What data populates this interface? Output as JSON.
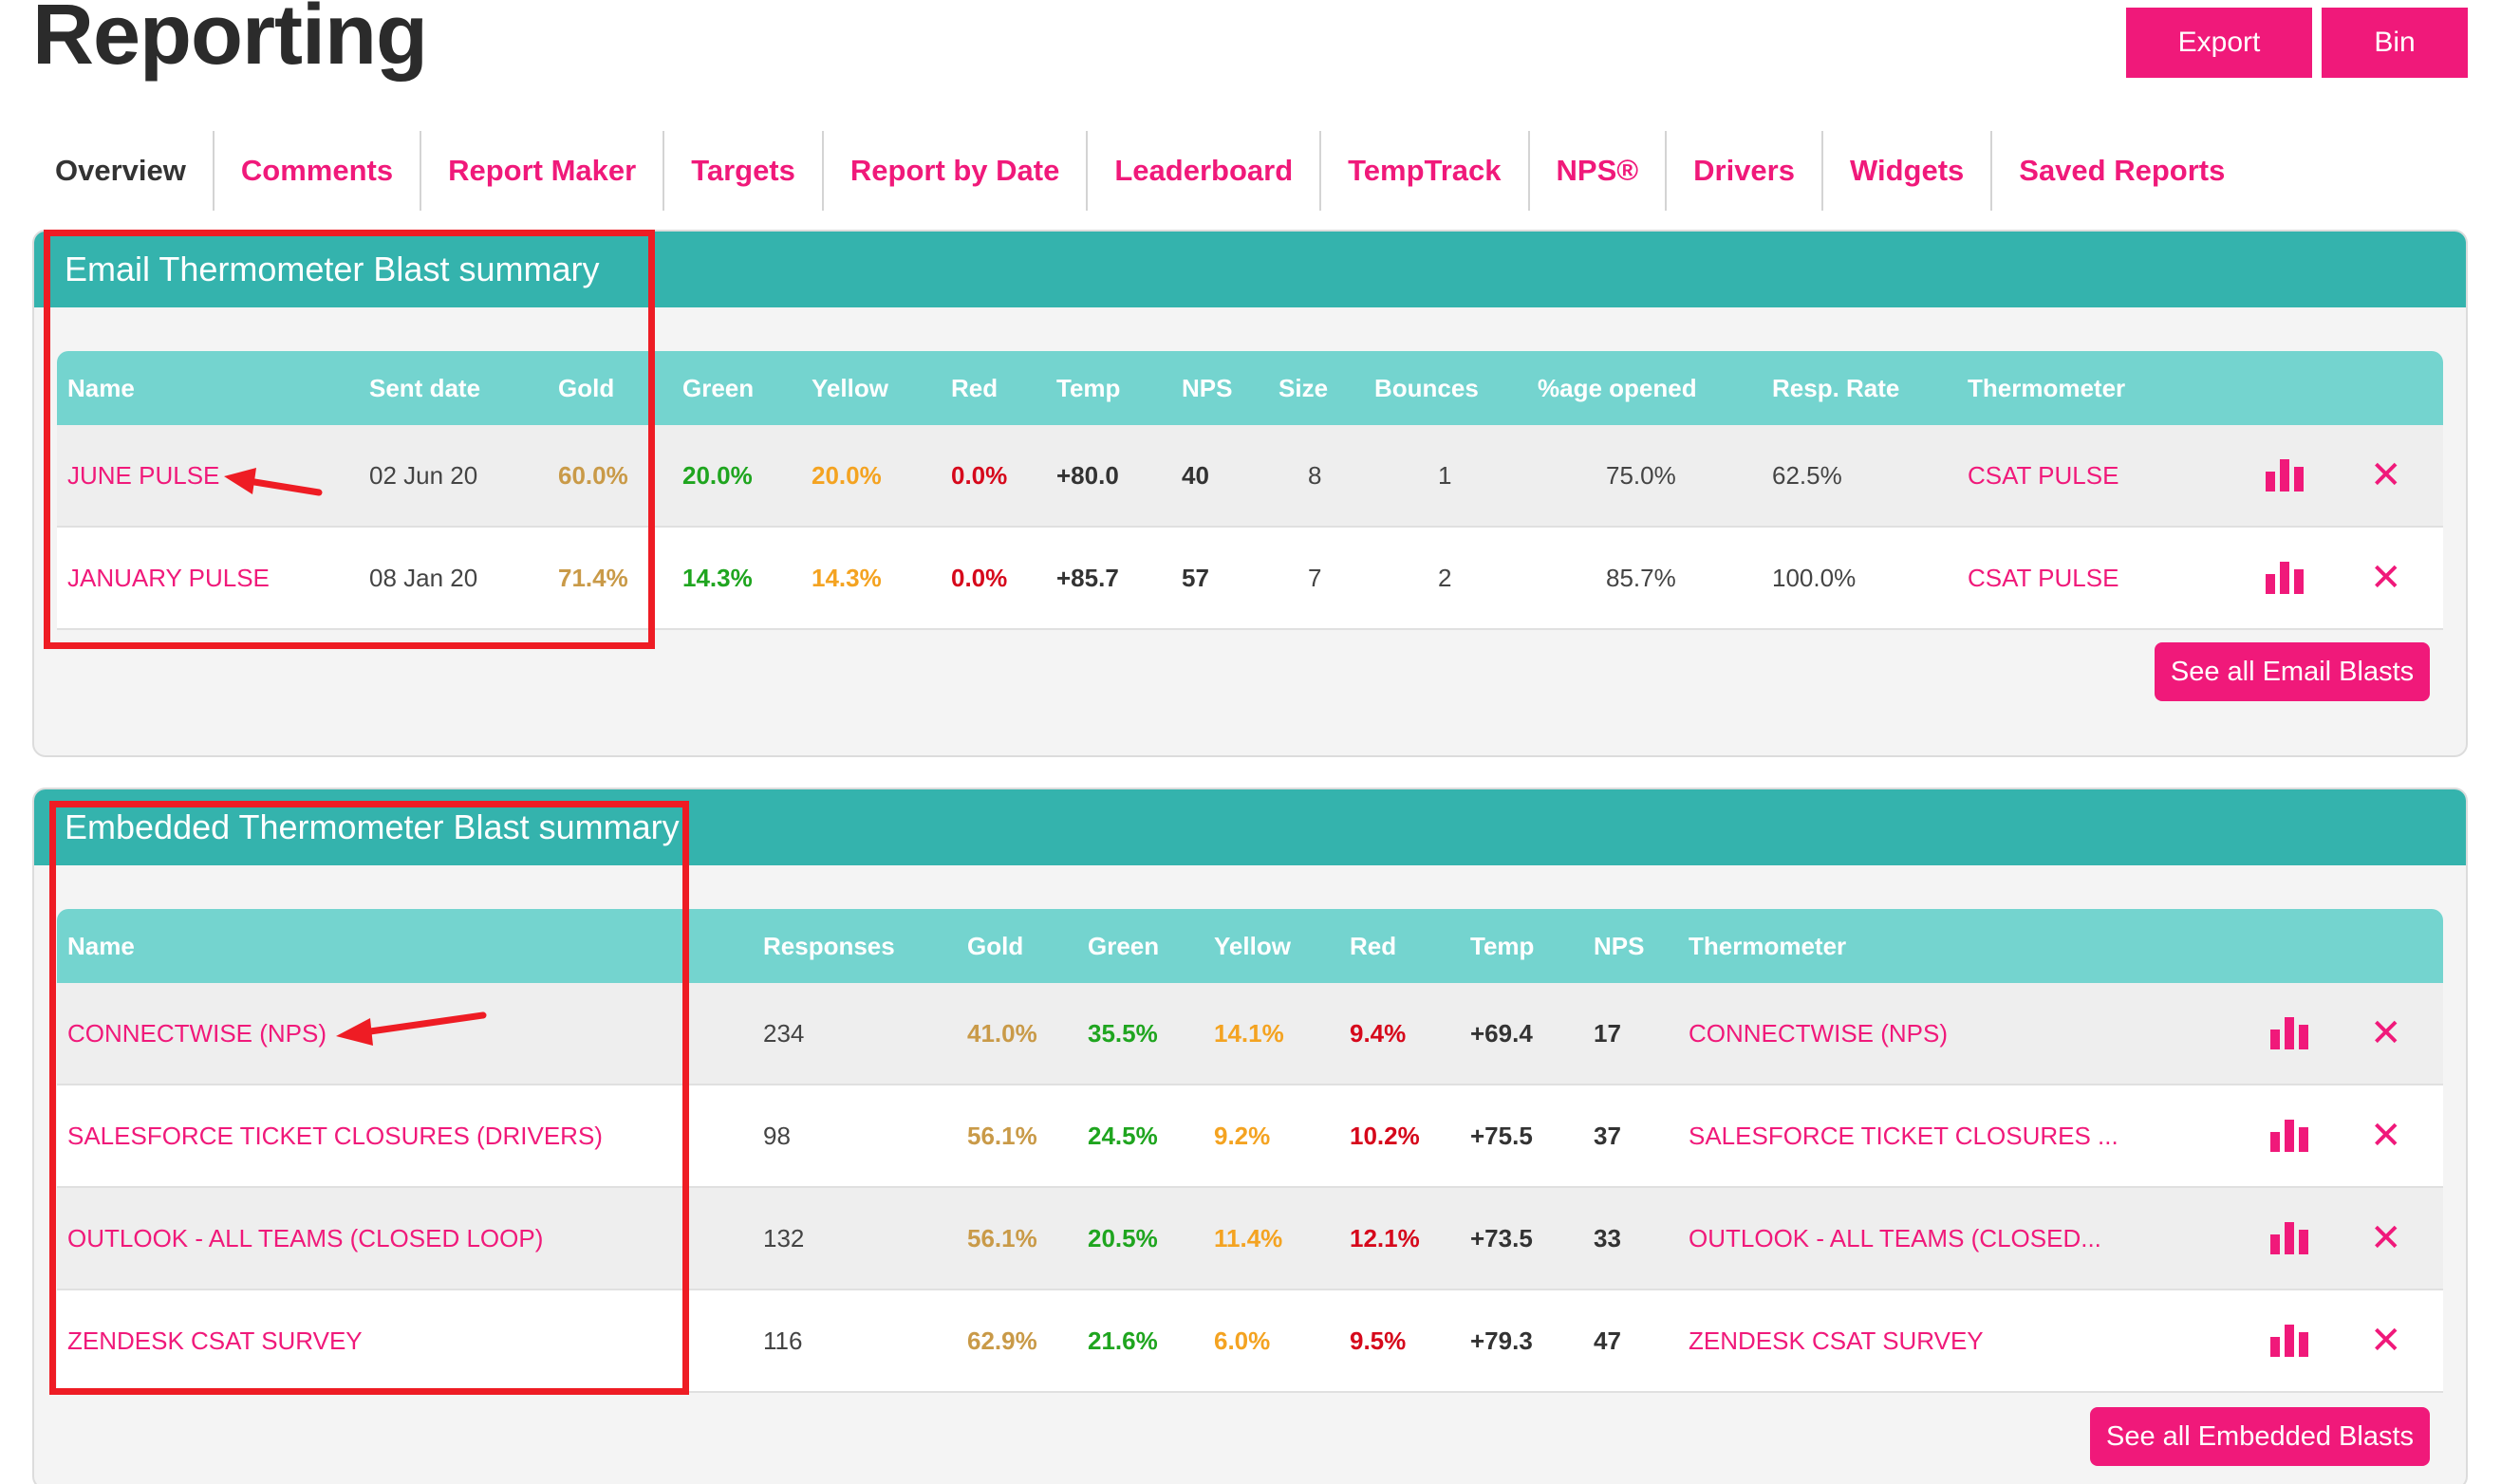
{
  "page": {
    "title": "Reporting",
    "export_label": "Export",
    "bin_label": "Bin"
  },
  "tabs": [
    "Overview",
    "Comments",
    "Report Maker",
    "Targets",
    "Report by Date",
    "Leaderboard",
    "TempTrack",
    "NPS®",
    "Drivers",
    "Widgets",
    "Saved Reports"
  ],
  "active_tab": "Overview",
  "colors": {
    "accent": "#f0197a",
    "header_teal": "#34b3ad",
    "table_head": "#74d4cf",
    "gold": "#c99a48",
    "green": "#1fa51f",
    "yellow": "#f4a321",
    "red": "#d6081b",
    "annotation": "#ee1c24"
  },
  "icons": {
    "chart": "bar-chart-icon",
    "delete": "close-icon"
  },
  "email_panel": {
    "title": "Email Thermometer Blast summary",
    "columns": [
      "Name",
      "Sent date",
      "Gold",
      "Green",
      "Yellow",
      "Red",
      "Temp",
      "NPS",
      "Size",
      "Bounces",
      "%age opened",
      "Resp. Rate",
      "Thermometer"
    ],
    "rows": [
      {
        "name": "JUNE PULSE",
        "sent_date": "02 Jun 20",
        "gold": "60.0%",
        "green": "20.0%",
        "yellow": "20.0%",
        "red": "0.0%",
        "temp": "+80.0",
        "nps": "40",
        "size": "8",
        "bounces": "1",
        "opened": "75.0%",
        "resp_rate": "62.5%",
        "thermometer": "CSAT PULSE"
      },
      {
        "name": "JANUARY PULSE",
        "sent_date": "08 Jan 20",
        "gold": "71.4%",
        "green": "14.3%",
        "yellow": "14.3%",
        "red": "0.0%",
        "temp": "+85.7",
        "nps": "57",
        "size": "7",
        "bounces": "2",
        "opened": "85.7%",
        "resp_rate": "100.0%",
        "thermometer": "CSAT PULSE"
      }
    ],
    "see_all_label": "See all Email Blasts"
  },
  "embedded_panel": {
    "title": "Embedded Thermometer Blast summary",
    "columns": [
      "Name",
      "Responses",
      "Gold",
      "Green",
      "Yellow",
      "Red",
      "Temp",
      "NPS",
      "Thermometer"
    ],
    "rows": [
      {
        "name": "CONNECTWISE (NPS)",
        "responses": "234",
        "gold": "41.0%",
        "green": "35.5%",
        "yellow": "14.1%",
        "red": "9.4%",
        "temp": "+69.4",
        "nps": "17",
        "thermometer": "CONNECTWISE (NPS)"
      },
      {
        "name": "SALESFORCE TICKET CLOSURES (DRIVERS)",
        "responses": "98",
        "gold": "56.1%",
        "green": "24.5%",
        "yellow": "9.2%",
        "red": "10.2%",
        "temp": "+75.5",
        "nps": "37",
        "thermometer": "SALESFORCE TICKET CLOSURES ..."
      },
      {
        "name": "OUTLOOK - ALL TEAMS (CLOSED LOOP)",
        "responses": "132",
        "gold": "56.1%",
        "green": "20.5%",
        "yellow": "11.4%",
        "red": "12.1%",
        "temp": "+73.5",
        "nps": "33",
        "thermometer": "OUTLOOK - ALL TEAMS (CLOSED..."
      },
      {
        "name": "ZENDESK CSAT SURVEY",
        "responses": "116",
        "gold": "62.9%",
        "green": "21.6%",
        "yellow": "6.0%",
        "red": "9.5%",
        "temp": "+79.3",
        "nps": "47",
        "thermometer": "ZENDESK CSAT SURVEY"
      }
    ],
    "see_all_label": "See all Embedded Blasts"
  }
}
